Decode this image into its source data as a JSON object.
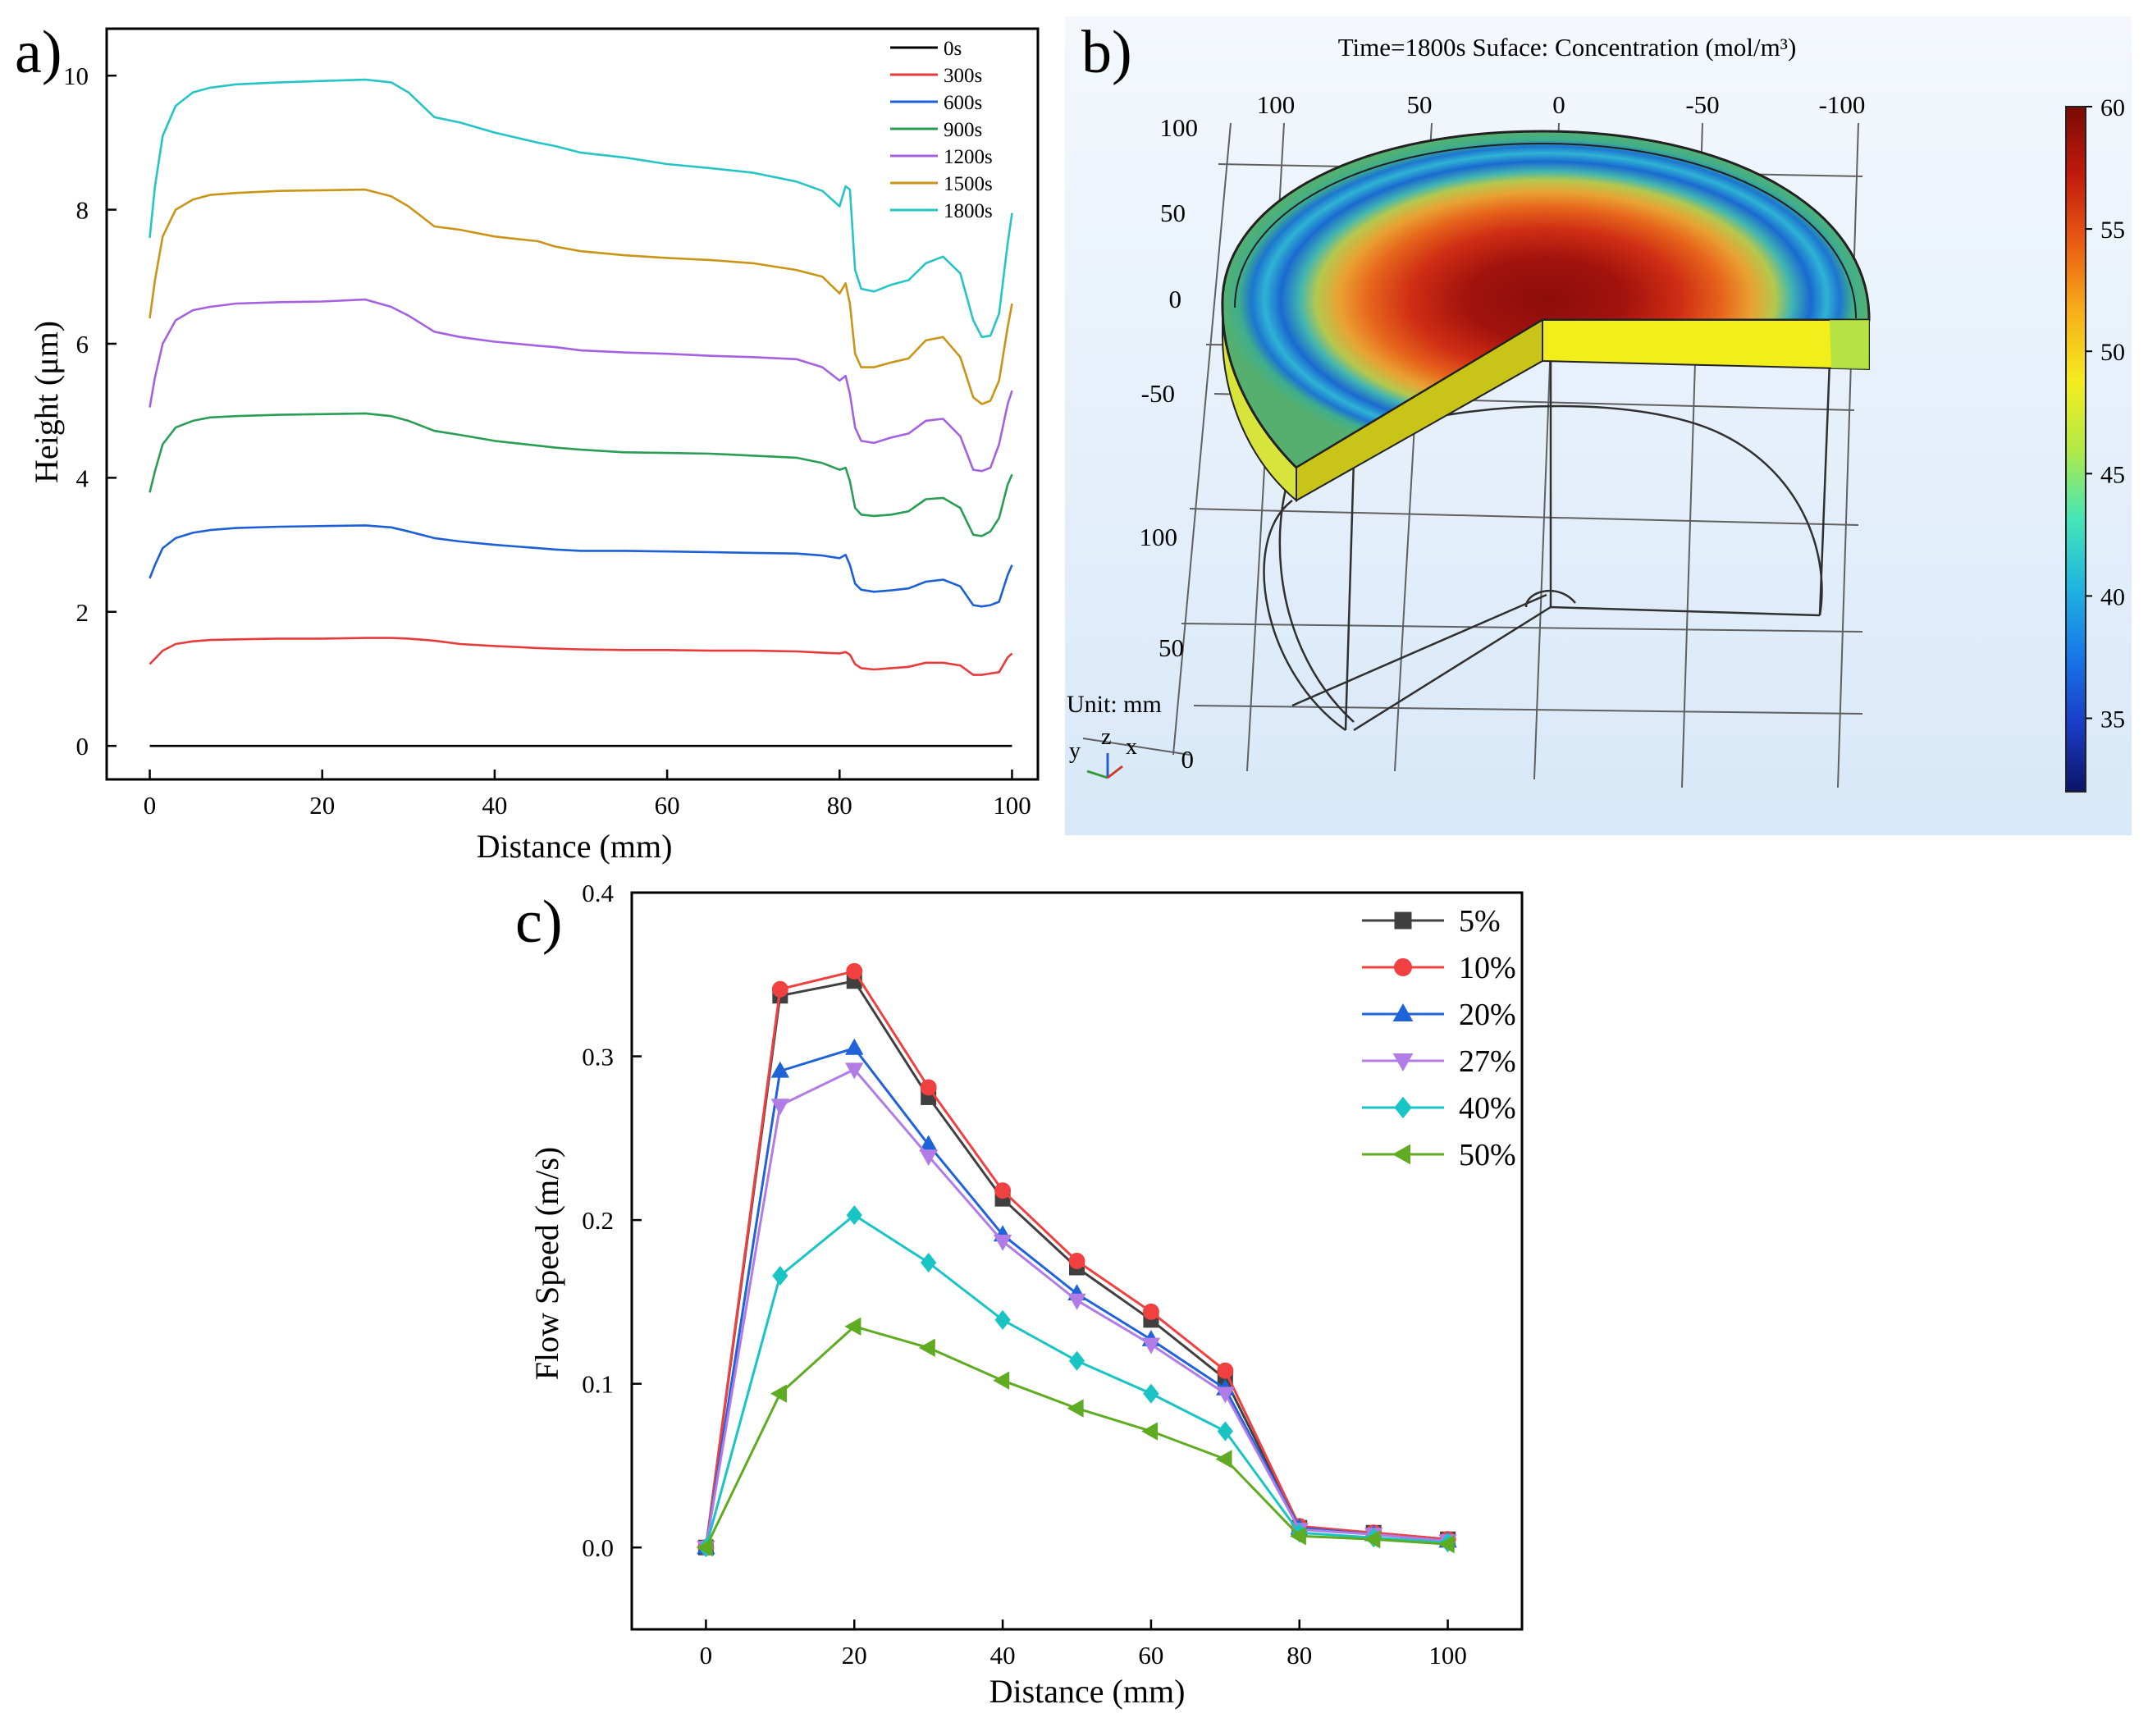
{
  "panel_labels": {
    "a": "a)",
    "b": "b)",
    "c": "c)"
  },
  "chart_data": [
    {
      "panel": "a",
      "type": "line",
      "xlabel": "Distance (mm)",
      "ylabel": "Height (μm)",
      "xlim": [
        -5,
        103
      ],
      "ylim": [
        -0.5,
        10.7
      ],
      "xticks": [
        0,
        20,
        40,
        60,
        80,
        100
      ],
      "yticks": [
        0,
        2,
        4,
        6,
        8,
        10
      ],
      "grid": false,
      "legend": "top-right",
      "x": [
        0,
        0.6,
        1.5,
        3,
        5,
        7,
        10,
        15,
        20,
        25,
        28,
        30,
        33,
        36,
        40,
        45,
        47,
        50,
        55,
        60,
        65,
        70,
        75,
        78,
        80,
        80.7,
        81.2,
        81.8,
        82.5,
        84,
        86,
        88,
        90,
        92,
        94,
        95.5,
        96.5,
        97.5,
        98.5,
        99.5,
        100
      ],
      "series": [
        {
          "name": "0s",
          "color": "#000000",
          "values": [
            0,
            0,
            0,
            0,
            0,
            0,
            0,
            0,
            0,
            0,
            0,
            0,
            0,
            0,
            0,
            0,
            0,
            0,
            0,
            0,
            0,
            0,
            0,
            0,
            0,
            0,
            0,
            0,
            0,
            0,
            0,
            0,
            0,
            0,
            0,
            0,
            0,
            0,
            0,
            0,
            0
          ]
        },
        {
          "name": "300s",
          "color": "#e83a3a",
          "values": [
            1.22,
            1.3,
            1.42,
            1.52,
            1.56,
            1.58,
            1.59,
            1.6,
            1.6,
            1.61,
            1.61,
            1.6,
            1.57,
            1.52,
            1.49,
            1.46,
            1.45,
            1.44,
            1.43,
            1.43,
            1.42,
            1.42,
            1.41,
            1.39,
            1.38,
            1.4,
            1.36,
            1.22,
            1.16,
            1.14,
            1.16,
            1.18,
            1.24,
            1.24,
            1.2,
            1.06,
            1.06,
            1.08,
            1.1,
            1.32,
            1.38
          ]
        },
        {
          "name": "600s",
          "color": "#1d5fd6",
          "values": [
            2.5,
            2.7,
            2.95,
            3.1,
            3.18,
            3.22,
            3.25,
            3.27,
            3.28,
            3.29,
            3.26,
            3.2,
            3.1,
            3.05,
            3.0,
            2.95,
            2.93,
            2.91,
            2.91,
            2.9,
            2.89,
            2.88,
            2.87,
            2.84,
            2.8,
            2.85,
            2.7,
            2.42,
            2.33,
            2.3,
            2.32,
            2.35,
            2.45,
            2.48,
            2.38,
            2.1,
            2.08,
            2.1,
            2.15,
            2.55,
            2.7
          ]
        },
        {
          "name": "900s",
          "color": "#2a9d55",
          "values": [
            3.78,
            4.1,
            4.5,
            4.75,
            4.85,
            4.9,
            4.92,
            4.94,
            4.95,
            4.96,
            4.92,
            4.85,
            4.7,
            4.64,
            4.55,
            4.48,
            4.45,
            4.42,
            4.38,
            4.37,
            4.36,
            4.33,
            4.3,
            4.22,
            4.12,
            4.15,
            3.95,
            3.55,
            3.45,
            3.43,
            3.45,
            3.5,
            3.68,
            3.7,
            3.55,
            3.15,
            3.13,
            3.2,
            3.4,
            3.9,
            4.05
          ]
        },
        {
          "name": "1200s",
          "color": "#a462e0",
          "values": [
            5.05,
            5.5,
            6.0,
            6.35,
            6.5,
            6.55,
            6.6,
            6.62,
            6.63,
            6.66,
            6.55,
            6.42,
            6.18,
            6.1,
            6.03,
            5.97,
            5.95,
            5.9,
            5.87,
            5.85,
            5.82,
            5.8,
            5.77,
            5.65,
            5.45,
            5.52,
            5.25,
            4.75,
            4.55,
            4.52,
            4.6,
            4.66,
            4.85,
            4.88,
            4.62,
            4.12,
            4.1,
            4.15,
            4.5,
            5.1,
            5.3
          ]
        },
        {
          "name": "1500s",
          "color": "#c99518",
          "values": [
            6.38,
            6.95,
            7.6,
            8.0,
            8.15,
            8.22,
            8.25,
            8.28,
            8.29,
            8.3,
            8.2,
            8.05,
            7.75,
            7.7,
            7.6,
            7.53,
            7.45,
            7.38,
            7.32,
            7.28,
            7.25,
            7.2,
            7.1,
            7.0,
            6.75,
            6.9,
            6.6,
            5.85,
            5.65,
            5.65,
            5.72,
            5.78,
            6.05,
            6.1,
            5.8,
            5.2,
            5.1,
            5.15,
            5.45,
            6.25,
            6.6
          ]
        },
        {
          "name": "1800s",
          "color": "#27c4c4",
          "values": [
            7.58,
            8.35,
            9.1,
            9.55,
            9.75,
            9.82,
            9.87,
            9.9,
            9.92,
            9.94,
            9.9,
            9.75,
            9.38,
            9.3,
            9.15,
            9.0,
            8.95,
            8.85,
            8.78,
            8.68,
            8.62,
            8.55,
            8.42,
            8.28,
            8.05,
            8.35,
            8.3,
            7.1,
            6.82,
            6.78,
            6.88,
            6.95,
            7.2,
            7.3,
            7.05,
            6.35,
            6.1,
            6.12,
            6.45,
            7.5,
            7.95
          ]
        }
      ]
    },
    {
      "panel": "b",
      "type": "heatmap",
      "title": "Time=1800s Suface: Concentration (mol/m³)",
      "unit_label": "Unit: mm",
      "axis_tick_labels_top": [
        "100",
        "50",
        "0",
        "-50",
        "-100"
      ],
      "axis_tick_labels_left_upper": [
        "100",
        "50",
        "0",
        "-50"
      ],
      "axis_tick_labels_left_lower": [
        "100",
        "50",
        "0"
      ],
      "triad_labels": {
        "y": "y",
        "z": "z",
        "x": "x"
      },
      "colorbar": {
        "min": 32,
        "max": 60,
        "ticks": [
          35,
          40,
          45,
          50,
          55,
          60
        ],
        "colors": [
          "#0b1466",
          "#1a3dc8",
          "#1878e8",
          "#20b6e0",
          "#46e6b6",
          "#b2ea46",
          "#f5ec1f",
          "#f7b01a",
          "#ea5d12",
          "#c21a0e",
          "#7a0a05"
        ]
      }
    },
    {
      "panel": "c",
      "type": "line",
      "xlabel": "Distance (mm)",
      "ylabel": "Flow Speed (m/s)",
      "xlim": [
        -10,
        110
      ],
      "ylim": [
        -0.05,
        0.4
      ],
      "xticks": [
        0,
        20,
        40,
        60,
        80,
        100
      ],
      "yticks": [
        0.0,
        0.1,
        0.2,
        0.3,
        0.4
      ],
      "grid": false,
      "legend": "top-right",
      "x": [
        0,
        10,
        20,
        30,
        40,
        50,
        60,
        70,
        80,
        90,
        100
      ],
      "series": [
        {
          "name": "5%",
          "color": "#404040",
          "marker": "square",
          "values": [
            0.0,
            0.337,
            0.346,
            0.275,
            0.213,
            0.171,
            0.139,
            0.103,
            0.012,
            0.009,
            0.005
          ]
        },
        {
          "name": "10%",
          "color": "#f04040",
          "marker": "circle",
          "values": [
            0.0,
            0.341,
            0.352,
            0.281,
            0.218,
            0.175,
            0.144,
            0.108,
            0.013,
            0.009,
            0.005
          ]
        },
        {
          "name": "20%",
          "color": "#1f63d8",
          "marker": "triangle-up",
          "values": [
            0.0,
            0.291,
            0.305,
            0.246,
            0.191,
            0.155,
            0.127,
            0.097,
            0.012,
            0.008,
            0.004
          ]
        },
        {
          "name": "27%",
          "color": "#b17ce6",
          "marker": "triangle-down",
          "values": [
            0.0,
            0.27,
            0.292,
            0.239,
            0.187,
            0.151,
            0.124,
            0.094,
            0.011,
            0.008,
            0.004
          ]
        },
        {
          "name": "40%",
          "color": "#19c4c4",
          "marker": "diamond",
          "values": [
            0.0,
            0.166,
            0.203,
            0.174,
            0.139,
            0.114,
            0.094,
            0.071,
            0.009,
            0.006,
            0.003
          ]
        },
        {
          "name": "50%",
          "color": "#5fab22",
          "marker": "triangle-left",
          "values": [
            0.0,
            0.094,
            0.135,
            0.122,
            0.102,
            0.085,
            0.071,
            0.054,
            0.007,
            0.005,
            0.002
          ]
        }
      ]
    }
  ]
}
